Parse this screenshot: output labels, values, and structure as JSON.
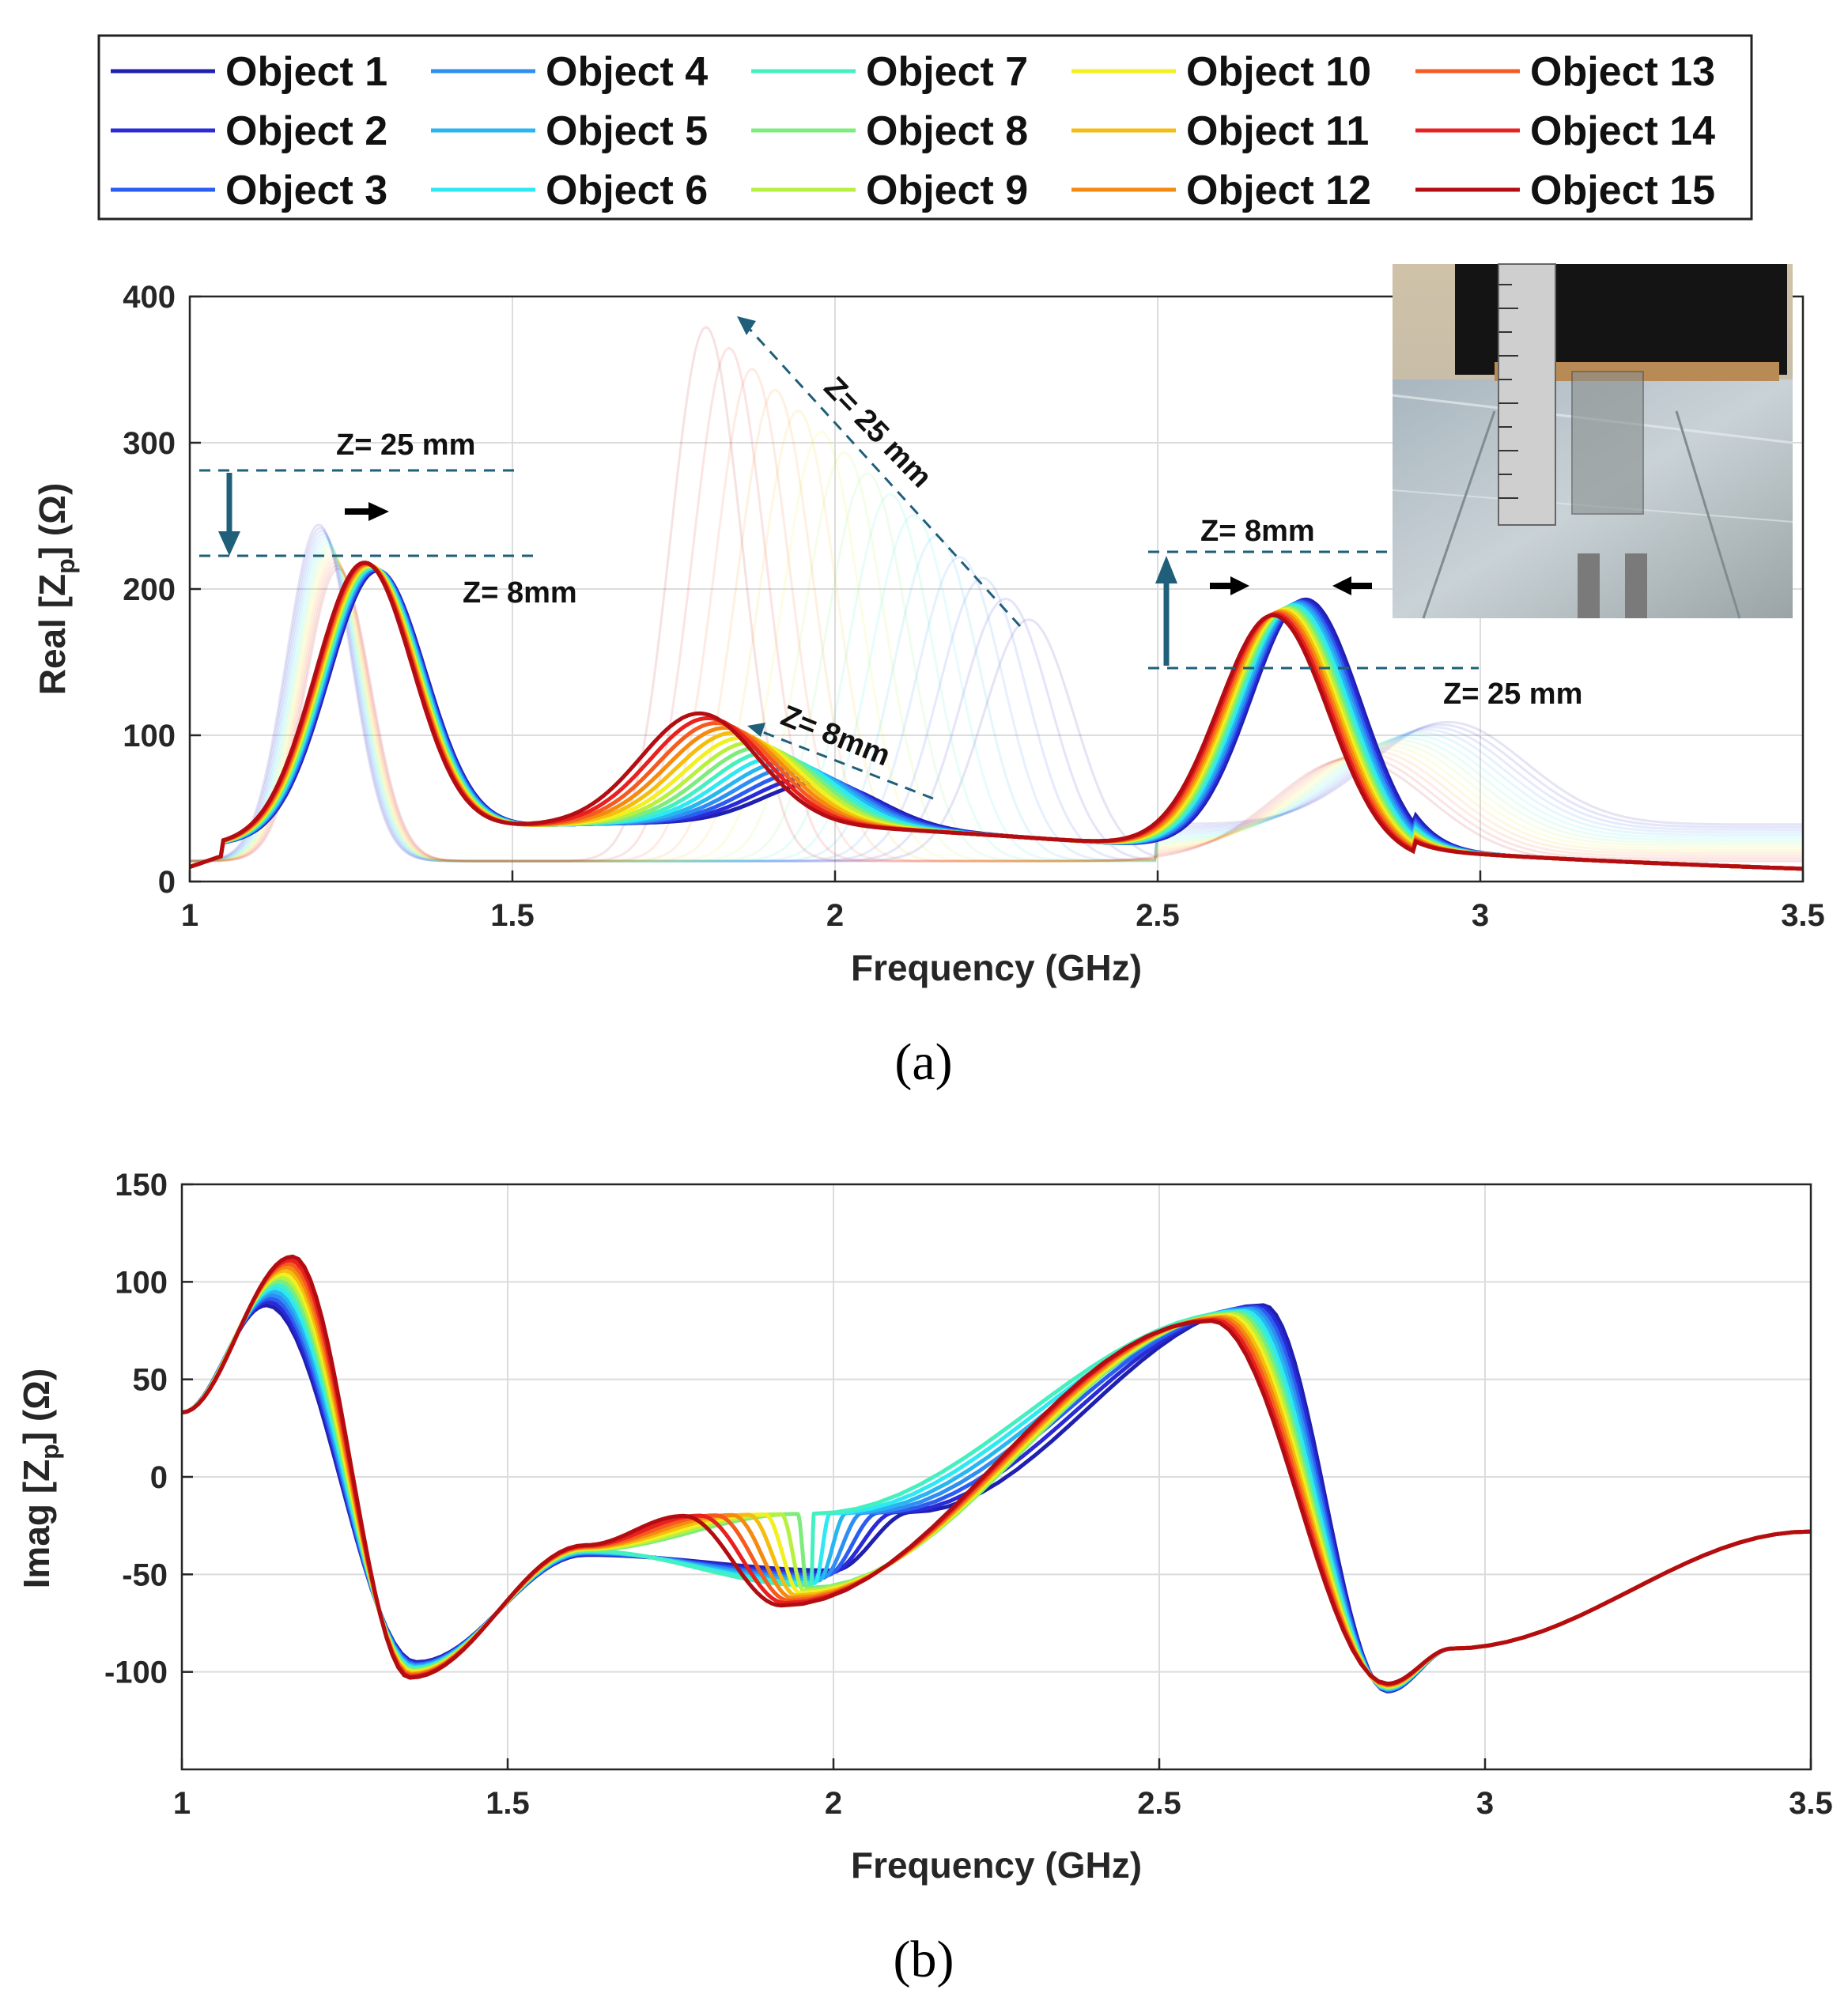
{
  "legend": [
    {
      "name": "Object 1",
      "color": "#1f1fb0"
    },
    {
      "name": "Object 2",
      "color": "#2a2ad6"
    },
    {
      "name": "Object 3",
      "color": "#2b5ef0"
    },
    {
      "name": "Object 4",
      "color": "#2f8ef2"
    },
    {
      "name": "Object 5",
      "color": "#27b6f0"
    },
    {
      "name": "Object 6",
      "color": "#2ee8f2"
    },
    {
      "name": "Object 7",
      "color": "#45f0c0"
    },
    {
      "name": "Object 8",
      "color": "#7eec7c"
    },
    {
      "name": "Object 9",
      "color": "#b8f040"
    },
    {
      "name": "Object 10",
      "color": "#f2f020"
    },
    {
      "name": "Object 11",
      "color": "#f5bd10"
    },
    {
      "name": "Object 12",
      "color": "#f58a10"
    },
    {
      "name": "Object 13",
      "color": "#f55a20"
    },
    {
      "name": "Object 14",
      "color": "#e82020"
    },
    {
      "name": "Object 15",
      "color": "#b30d12"
    }
  ],
  "chart_data": [
    {
      "type": "line",
      "panel_label": "(a)",
      "title": "",
      "xlabel": "Frequency (GHz)",
      "ylabel": "Real [Z",
      "ylabel_sub": "p",
      "ylabel_unit": "] (Ω)",
      "xlim": [
        1,
        3.5
      ],
      "ylim": [
        0,
        400
      ],
      "xticks": [
        "1",
        "1.5",
        "2",
        "2.5",
        "3",
        "3.5"
      ],
      "yticks": [
        "0",
        "100",
        "200",
        "300",
        "400"
      ],
      "grid": true,
      "series_model": "peaks",
      "peaks_bold": [
        {
          "name": "Object 1",
          "p1": [
            1.29,
            196
          ],
          "p2": [
            1.8,
            42
          ],
          "p2b": [
            2.16,
            38
          ],
          "p3": [
            2.73,
            208
          ]
        },
        {
          "name": "Object 8",
          "p1": [
            1.28,
            200
          ],
          "p2": [
            1.95,
            58
          ],
          "p3": [
            2.7,
            214
          ]
        },
        {
          "name": "Object 15",
          "p1": [
            1.27,
            202
          ],
          "p2": [
            1.78,
            75
          ],
          "p3": [
            2.68,
            192
          ]
        }
      ],
      "faint_peaks_25mm": [
        1.2,
        1.83,
        2.3
      ],
      "annotations": [
        "Z= 25 mm",
        "Z= 8mm",
        "Z= 25 mm",
        "Z= 8mm",
        "Z= 8mm",
        "Z= 25 mm"
      ],
      "inset": "photo"
    },
    {
      "type": "line",
      "panel_label": "(b)",
      "title": "",
      "xlabel": "Frequency (GHz)",
      "ylabel": "Imag [Z",
      "ylabel_sub": "p",
      "ylabel_unit": "] (Ω)",
      "xlim": [
        1,
        3.5
      ],
      "ylim": [
        -150,
        150
      ],
      "xticks": [
        "1",
        "1.5",
        "2",
        "2.5",
        "3",
        "3.5"
      ],
      "yticks": [
        "150",
        "100",
        "50",
        "0",
        "-50",
        "-100"
      ],
      "grid": true,
      "key_points": {
        "Object 1": [
          [
            1.0,
            33
          ],
          [
            1.12,
            85
          ],
          [
            1.15,
            77
          ],
          [
            1.3,
            30
          ],
          [
            1.38,
            -92
          ],
          [
            1.6,
            -50
          ],
          [
            2.15,
            -15
          ],
          [
            2.4,
            0
          ],
          [
            2.63,
            65
          ],
          [
            2.66,
            88
          ],
          [
            2.85,
            -112
          ],
          [
            3.5,
            -28
          ]
        ],
        "Object 8": [
          [
            1.0,
            33
          ],
          [
            1.16,
            105
          ],
          [
            1.3,
            10
          ],
          [
            1.37,
            -100
          ],
          [
            1.85,
            -18
          ],
          [
            1.98,
            -47
          ],
          [
            2.62,
            92
          ],
          [
            2.85,
            -108
          ],
          [
            3.5,
            -28
          ]
        ],
        "Object 15": [
          [
            1.0,
            33
          ],
          [
            1.17,
            113
          ],
          [
            1.35,
            -100
          ],
          [
            1.75,
            -20
          ],
          [
            1.92,
            -66
          ],
          [
            2.57,
            80
          ],
          [
            2.84,
            -106
          ],
          [
            3.5,
            -28
          ]
        ]
      }
    }
  ]
}
